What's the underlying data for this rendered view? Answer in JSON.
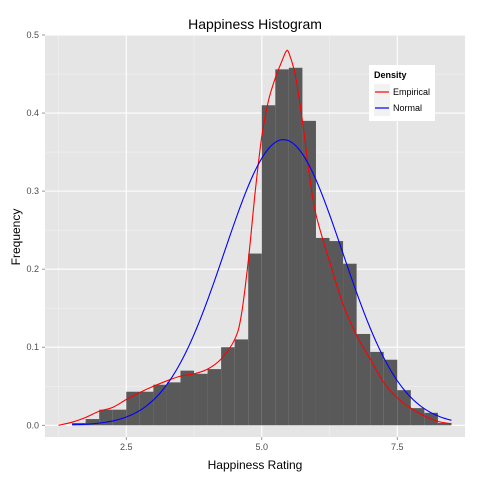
{
  "chart_data": {
    "type": "bar",
    "title": "Happiness Histogram",
    "xlabel": "Happiness Rating",
    "ylabel": "Frequency",
    "xlim": [
      1.0,
      8.75
    ],
    "ylim": [
      -0.015,
      0.5
    ],
    "x_ticks": [
      2.5,
      5.0,
      7.5
    ],
    "x_tick_labels": [
      "2.5",
      "5.0",
      "7.5"
    ],
    "y_ticks": [
      0.0,
      0.1,
      0.2,
      0.3,
      0.4,
      0.5
    ],
    "y_tick_labels": [
      "0.0",
      "0.1",
      "0.2",
      "0.3",
      "0.4",
      "0.5"
    ],
    "grid": true,
    "background": "#e5e5e5",
    "bar_color": "#595959",
    "bin_width": 0.25,
    "bins": [
      {
        "x0": 1.5,
        "value": 0.003
      },
      {
        "x0": 1.75,
        "value": 0.008
      },
      {
        "x0": 2.0,
        "value": 0.02
      },
      {
        "x0": 2.25,
        "value": 0.02
      },
      {
        "x0": 2.5,
        "value": 0.043
      },
      {
        "x0": 2.75,
        "value": 0.043
      },
      {
        "x0": 3.0,
        "value": 0.052
      },
      {
        "x0": 3.25,
        "value": 0.055
      },
      {
        "x0": 3.5,
        "value": 0.07
      },
      {
        "x0": 3.75,
        "value": 0.066
      },
      {
        "x0": 4.0,
        "value": 0.072
      },
      {
        "x0": 4.25,
        "value": 0.1
      },
      {
        "x0": 4.5,
        "value": 0.11
      },
      {
        "x0": 4.75,
        "value": 0.22
      },
      {
        "x0": 5.0,
        "value": 0.41
      },
      {
        "x0": 5.25,
        "value": 0.456
      },
      {
        "x0": 5.5,
        "value": 0.458
      },
      {
        "x0": 5.75,
        "value": 0.39
      },
      {
        "x0": 6.0,
        "value": 0.24
      },
      {
        "x0": 6.25,
        "value": 0.236
      },
      {
        "x0": 6.5,
        "value": 0.207
      },
      {
        "x0": 6.75,
        "value": 0.117
      },
      {
        "x0": 7.0,
        "value": 0.094
      },
      {
        "x0": 7.25,
        "value": 0.084
      },
      {
        "x0": 7.5,
        "value": 0.045
      },
      {
        "x0": 7.75,
        "value": 0.022
      },
      {
        "x0": 8.0,
        "value": 0.016
      },
      {
        "x0": 8.25,
        "value": 0.003
      }
    ],
    "legend": {
      "title": "Density",
      "position": "top-right",
      "items": [
        {
          "label": "Empirical",
          "color": "#ff0000"
        },
        {
          "label": "Normal",
          "color": "#0000ff"
        }
      ]
    },
    "series": [
      {
        "name": "Empirical",
        "color": "#ff0000",
        "x": [
          1.25,
          1.5,
          1.75,
          2.0,
          2.25,
          2.5,
          2.75,
          3.0,
          3.25,
          3.5,
          3.75,
          4.0,
          4.25,
          4.5,
          4.62,
          4.75,
          4.88,
          5.0,
          5.12,
          5.25,
          5.38,
          5.45,
          5.5,
          5.62,
          5.75,
          5.88,
          6.0,
          6.25,
          6.5,
          6.75,
          7.0,
          7.25,
          7.5,
          7.75,
          8.0,
          8.25,
          8.5
        ],
        "y": [
          0.0,
          0.004,
          0.01,
          0.018,
          0.023,
          0.033,
          0.042,
          0.05,
          0.057,
          0.063,
          0.066,
          0.072,
          0.085,
          0.11,
          0.14,
          0.21,
          0.3,
          0.37,
          0.415,
          0.445,
          0.468,
          0.479,
          0.477,
          0.448,
          0.39,
          0.32,
          0.27,
          0.21,
          0.155,
          0.115,
          0.085,
          0.055,
          0.035,
          0.022,
          0.012,
          0.005,
          0.002
        ]
      },
      {
        "name": "Normal",
        "color": "#0000ff",
        "mean": 5.4,
        "sd": 1.09,
        "x_range": [
          1.5,
          8.5
        ]
      }
    ]
  }
}
